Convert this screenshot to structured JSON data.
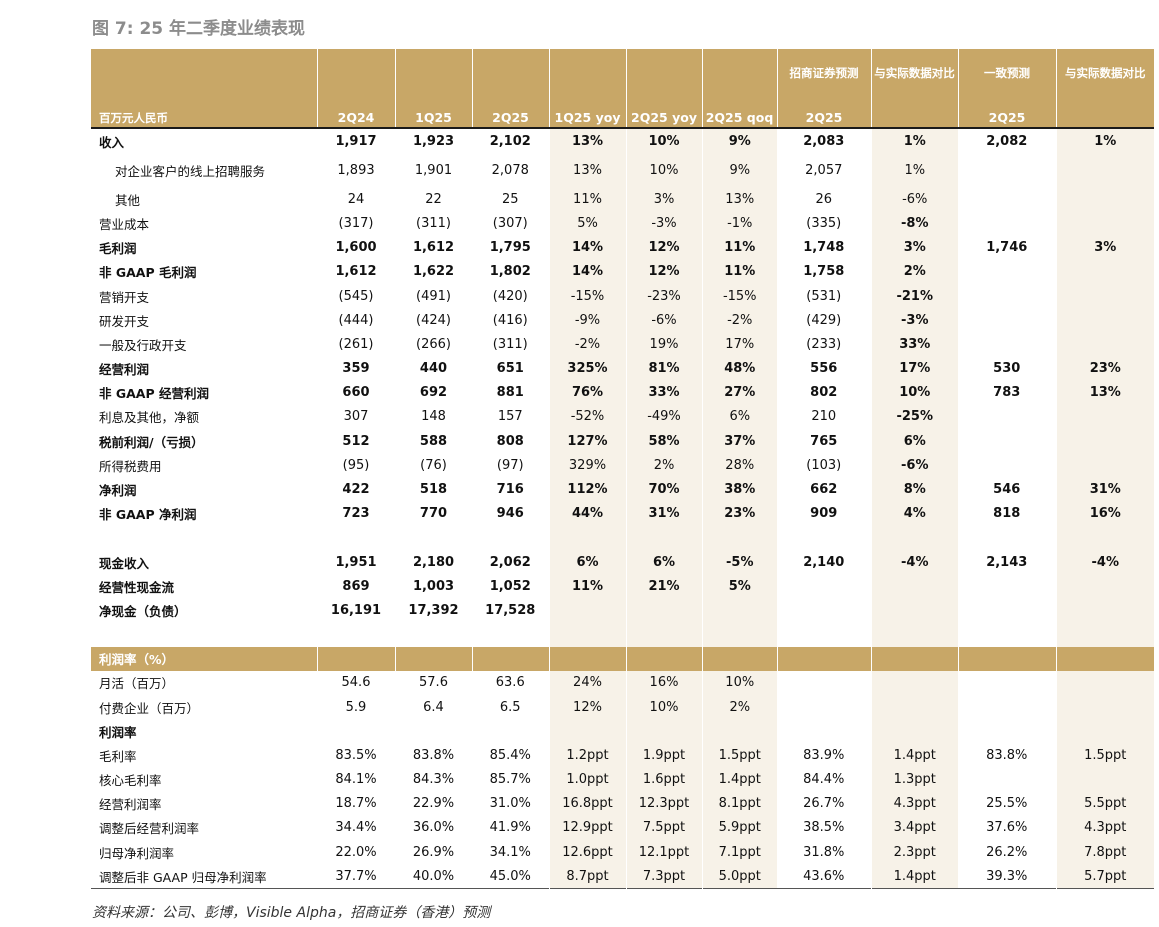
{
  "title": "图 7:  25 年二季度业绩表现",
  "header": {
    "top": [
      "",
      "",
      "",
      "",
      "",
      "",
      "",
      "招商证券预测",
      "与实际数据对比",
      "一致预测",
      "与实际数据对比"
    ],
    "bottom": [
      "百万元人民币",
      "2Q24",
      "1Q25",
      "2Q25",
      "1Q25 yoy",
      "2Q25 yoy",
      "2Q25 qoq",
      "2Q25",
      "",
      "2Q25",
      ""
    ]
  },
  "rows": [
    {
      "label": "收入",
      "bold": true,
      "values": [
        "1,917",
        "1,923",
        "2,102",
        "13%",
        "10%",
        "9%",
        "2,083",
        "1%",
        "2,082",
        "1%"
      ]
    },
    {
      "label": "对企业客户的线上招聘服务",
      "indent": true,
      "tall": true,
      "values": [
        "1,893",
        "1,901",
        "2,078",
        "13%",
        "10%",
        "9%",
        "2,057",
        "1%",
        "",
        ""
      ]
    },
    {
      "label": "其他",
      "indent": true,
      "values": [
        "24",
        "22",
        "25",
        "11%",
        "3%",
        "13%",
        "26",
        "-6%",
        "",
        ""
      ]
    },
    {
      "label": "营业成本",
      "values": [
        "(317)",
        "(311)",
        "(307)",
        "5%",
        "-3%",
        "-1%",
        "(335)",
        "-8%",
        "",
        ""
      ],
      "bold_cols": [
        7
      ]
    },
    {
      "label": "毛利润",
      "bold": true,
      "values": [
        "1,600",
        "1,612",
        "1,795",
        "14%",
        "12%",
        "11%",
        "1,748",
        "3%",
        "1,746",
        "3%"
      ]
    },
    {
      "label": "非 GAAP 毛利润",
      "bold": true,
      "values": [
        "1,612",
        "1,622",
        "1,802",
        "14%",
        "12%",
        "11%",
        "1,758",
        "2%",
        "",
        ""
      ]
    },
    {
      "label": "营销开支",
      "values": [
        "(545)",
        "(491)",
        "(420)",
        "-15%",
        "-23%",
        "-15%",
        "(531)",
        "-21%",
        "",
        ""
      ],
      "bold_cols": [
        7
      ]
    },
    {
      "label": "研发开支",
      "values": [
        "(444)",
        "(424)",
        "(416)",
        "-9%",
        "-6%",
        "-2%",
        "(429)",
        "-3%",
        "",
        ""
      ],
      "bold_cols": [
        7
      ]
    },
    {
      "label": "一般及行政开支",
      "values": [
        "(261)",
        "(266)",
        "(311)",
        "-2%",
        "19%",
        "17%",
        "(233)",
        "33%",
        "",
        ""
      ],
      "bold_cols": [
        7
      ]
    },
    {
      "label": "经营利润",
      "bold": true,
      "values": [
        "359",
        "440",
        "651",
        "325%",
        "81%",
        "48%",
        "556",
        "17%",
        "530",
        "23%"
      ]
    },
    {
      "label": "非 GAAP 经营利润",
      "bold": true,
      "values": [
        "660",
        "692",
        "881",
        "76%",
        "33%",
        "27%",
        "802",
        "10%",
        "783",
        "13%"
      ]
    },
    {
      "label": "利息及其他，净额",
      "values": [
        "307",
        "148",
        "157",
        "-52%",
        "-49%",
        "6%",
        "210",
        "-25%",
        "",
        ""
      ],
      "bold_cols": [
        7
      ]
    },
    {
      "label": "税前利润/（亏损）",
      "bold": true,
      "values": [
        "512",
        "588",
        "808",
        "127%",
        "58%",
        "37%",
        "765",
        "6%",
        "",
        ""
      ]
    },
    {
      "label": "所得税费用",
      "values": [
        "(95)",
        "(76)",
        "(97)",
        "329%",
        "2%",
        "28%",
        "(103)",
        "-6%",
        "",
        ""
      ],
      "bold_cols": [
        7
      ]
    },
    {
      "label": "净利润",
      "bold": true,
      "values": [
        "422",
        "518",
        "716",
        "112%",
        "70%",
        "38%",
        "662",
        "8%",
        "546",
        "31%"
      ]
    },
    {
      "label": "非 GAAP 净利润",
      "bold": true,
      "values": [
        "723",
        "770",
        "946",
        "44%",
        "31%",
        "23%",
        "909",
        "4%",
        "818",
        "16%"
      ]
    },
    {
      "spacer": true
    },
    {
      "label": "现金收入",
      "bold": true,
      "values": [
        "1,951",
        "2,180",
        "2,062",
        "6%",
        "6%",
        "-5%",
        "2,140",
        "-4%",
        "2,143",
        "-4%"
      ]
    },
    {
      "label": "经营性现金流",
      "bold": true,
      "values": [
        "869",
        "1,003",
        "1,052",
        "11%",
        "21%",
        "5%",
        "",
        "",
        "",
        ""
      ]
    },
    {
      "label": "净现金（负债）",
      "bold": true,
      "values": [
        "16,191",
        "17,392",
        "17,528",
        "",
        "",
        "",
        "",
        "",
        "",
        ""
      ]
    },
    {
      "spacer": true
    },
    {
      "section": true,
      "label": "利润率（%）"
    },
    {
      "label": "月活（百万）",
      "values": [
        "54.6",
        "57.6",
        "63.6",
        "24%",
        "16%",
        "10%",
        "",
        "",
        "",
        ""
      ]
    },
    {
      "label": "付费企业（百万）",
      "values": [
        "5.9",
        "6.4",
        "6.5",
        "12%",
        "10%",
        "2%",
        "",
        "",
        "",
        ""
      ]
    },
    {
      "label": "利润率",
      "bold": true,
      "values": [
        "",
        "",
        "",
        "",
        "",
        "",
        "",
        "",
        "",
        ""
      ]
    },
    {
      "label": "毛利率",
      "values": [
        "83.5%",
        "83.8%",
        "85.4%",
        "1.2ppt",
        "1.9ppt",
        "1.5ppt",
        "83.9%",
        "1.4ppt",
        "83.8%",
        "1.5ppt"
      ]
    },
    {
      "label": "核心毛利率",
      "values": [
        "84.1%",
        "84.3%",
        "85.7%",
        "1.0ppt",
        "1.6ppt",
        "1.4ppt",
        "84.4%",
        "1.3ppt",
        "",
        ""
      ]
    },
    {
      "label": "经营利润率",
      "values": [
        "18.7%",
        "22.9%",
        "31.0%",
        "16.8ppt",
        "12.3ppt",
        "8.1ppt",
        "26.7%",
        "4.3ppt",
        "25.5%",
        "5.5ppt"
      ]
    },
    {
      "label": "调整后经营利润率",
      "values": [
        "34.4%",
        "36.0%",
        "41.9%",
        "12.9ppt",
        "7.5ppt",
        "5.9ppt",
        "38.5%",
        "3.4ppt",
        "37.6%",
        "4.3ppt"
      ]
    },
    {
      "label": "归母净利润率",
      "values": [
        "22.0%",
        "26.9%",
        "34.1%",
        "12.6ppt",
        "12.1ppt",
        "7.1ppt",
        "31.8%",
        "2.3ppt",
        "26.2%",
        "7.8ppt"
      ]
    },
    {
      "label": "调整后非 GAAP 归母净利润率",
      "last": true,
      "values": [
        "37.7%",
        "40.0%",
        "45.0%",
        "8.7ppt",
        "7.3ppt",
        "5.0ppt",
        "43.6%",
        "1.4ppt",
        "39.3%",
        "5.7ppt"
      ]
    }
  ],
  "source": "资料来源：公司、彭博，Visible Alpha，招商证券（香港）预测"
}
